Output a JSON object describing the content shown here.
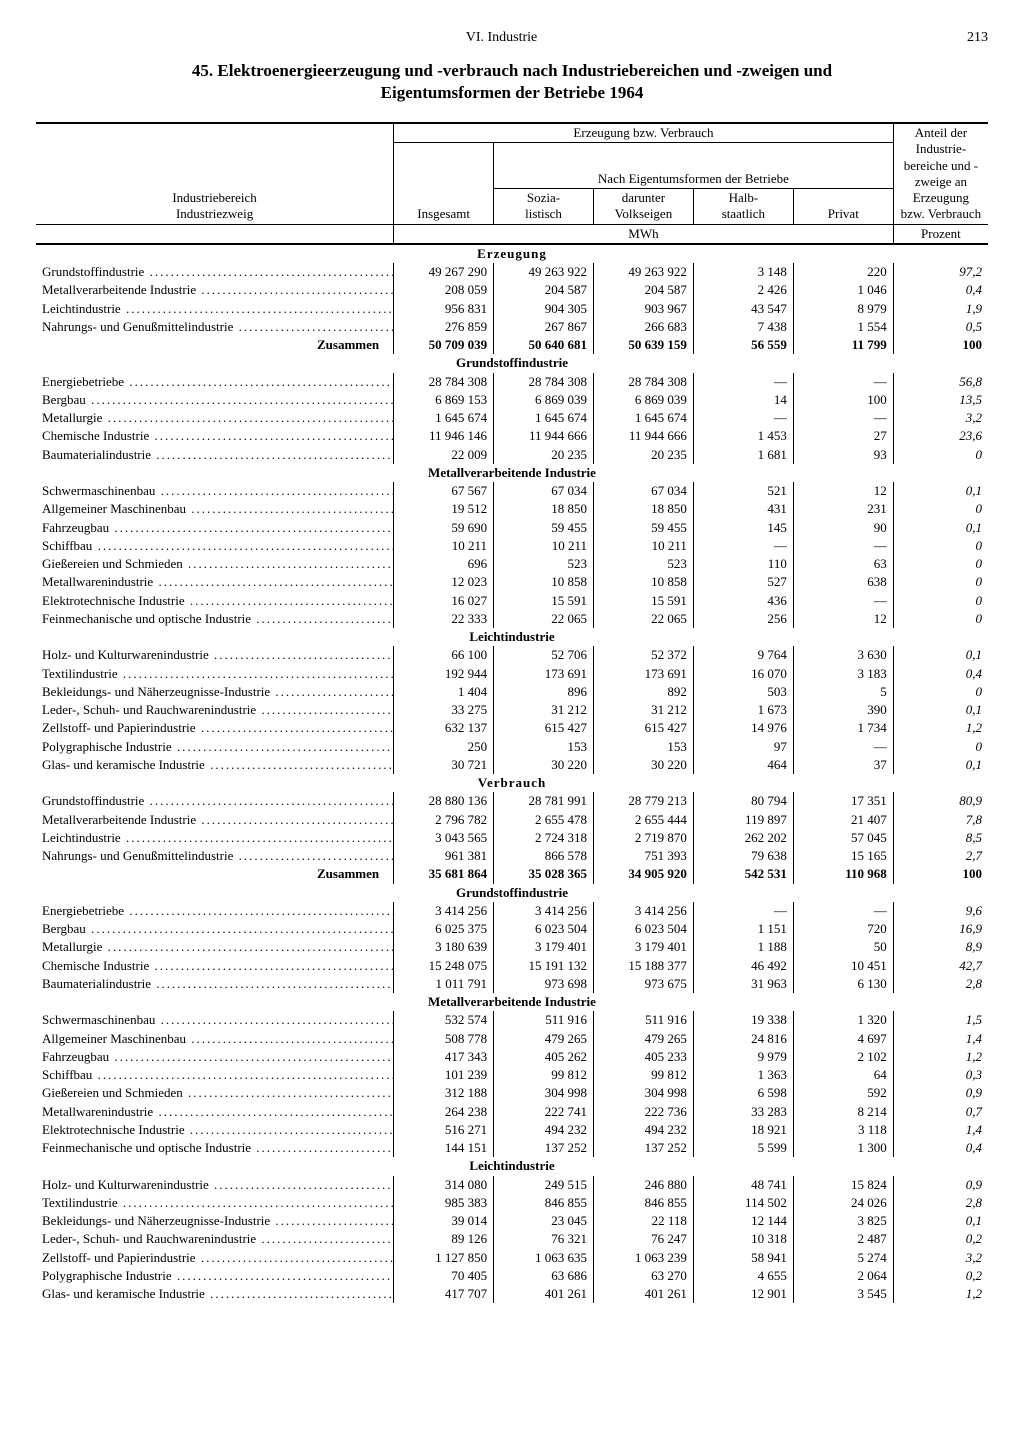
{
  "page": {
    "chapter": "VI. Industrie",
    "number": "213",
    "title_line1": "45. Elektroenergieerzeugung und -verbrauch nach Industriebereichen und -zweigen und",
    "title_line2": "Eigentumsformen der Betriebe 1964"
  },
  "header": {
    "col_bereich1": "Industriebereich",
    "col_bereich2": "Industriezweig",
    "group_top": "Erzeugung bzw. Verbrauch",
    "group_sub": "Nach Eigentumsformen der Betriebe",
    "insgesamt": "Insgesamt",
    "sozialistisch": "Sozia-\nlistisch",
    "volkseigen": "darunter\nVolkseigen",
    "halbstaatlich": "Halb-\nstaatlich",
    "privat": "Privat",
    "anteil": "Anteil der Industrie-\nbereiche und -zweige an Erzeugung bzw. Verbrauch",
    "unit_mwh": "MWh",
    "unit_prozent": "Prozent"
  },
  "sections": [
    {
      "heading": "Erzeugung",
      "blocks": [
        {
          "rows": [
            {
              "label": "Grundstoffindustrie",
              "v": [
                "49 267 290",
                "49 263 922",
                "49 263 922",
                "3 148",
                "220",
                "97,2"
              ]
            },
            {
              "label": "Metallverarbeitende Industrie",
              "v": [
                "208 059",
                "204 587",
                "204 587",
                "2 426",
                "1 046",
                "0,4"
              ]
            },
            {
              "label": "Leichtindustrie",
              "v": [
                "956 831",
                "904 305",
                "903 967",
                "43 547",
                "8 979",
                "1,9"
              ]
            },
            {
              "label": "Nahrungs- und Genußmittelindustrie",
              "v": [
                "276 859",
                "267 867",
                "266 683",
                "7 438",
                "1 554",
                "0,5"
              ]
            }
          ],
          "sum": {
            "label": "Zusammen",
            "v": [
              "50 709 039",
              "50 640 681",
              "50 639 159",
              "56 559",
              "11 799",
              "100"
            ]
          }
        },
        {
          "subheading": "Grundstoffindustrie",
          "rows": [
            {
              "label": "Energiebetriebe",
              "v": [
                "28 784 308",
                "28 784 308",
                "28 784 308",
                "—",
                "—",
                "56,8"
              ]
            },
            {
              "label": "Bergbau",
              "v": [
                "6 869 153",
                "6 869 039",
                "6 869 039",
                "14",
                "100",
                "13,5"
              ]
            },
            {
              "label": "Metallurgie",
              "v": [
                "1 645 674",
                "1 645 674",
                "1 645 674",
                "—",
                "—",
                "3,2"
              ]
            },
            {
              "label": "Chemische Industrie",
              "v": [
                "11 946 146",
                "11 944 666",
                "11 944 666",
                "1 453",
                "27",
                "23,6"
              ]
            },
            {
              "label": "Baumaterialindustrie",
              "v": [
                "22 009",
                "20 235",
                "20 235",
                "1 681",
                "93",
                "0"
              ]
            }
          ]
        },
        {
          "subheading": "Metallverarbeitende Industrie",
          "rows": [
            {
              "label": "Schwermaschinenbau",
              "v": [
                "67 567",
                "67 034",
                "67 034",
                "521",
                "12",
                "0,1"
              ]
            },
            {
              "label": "Allgemeiner Maschinenbau",
              "v": [
                "19 512",
                "18 850",
                "18 850",
                "431",
                "231",
                "0"
              ]
            },
            {
              "label": "Fahrzeugbau",
              "v": [
                "59 690",
                "59 455",
                "59 455",
                "145",
                "90",
                "0,1"
              ]
            },
            {
              "label": "Schiffbau",
              "v": [
                "10 211",
                "10 211",
                "10 211",
                "—",
                "—",
                "0"
              ]
            },
            {
              "label": "Gießereien und Schmieden",
              "v": [
                "696",
                "523",
                "523",
                "110",
                "63",
                "0"
              ]
            },
            {
              "label": "Metallwarenindustrie",
              "v": [
                "12 023",
                "10 858",
                "10 858",
                "527",
                "638",
                "0"
              ]
            },
            {
              "label": "Elektrotechnische Industrie",
              "v": [
                "16 027",
                "15 591",
                "15 591",
                "436",
                "—",
                "0"
              ]
            },
            {
              "label": "Feinmechanische und optische Industrie",
              "v": [
                "22 333",
                "22 065",
                "22 065",
                "256",
                "12",
                "0"
              ]
            }
          ]
        },
        {
          "subheading": "Leichtindustrie",
          "rows": [
            {
              "label": "Holz- und Kulturwarenindustrie",
              "v": [
                "66 100",
                "52 706",
                "52 372",
                "9 764",
                "3 630",
                "0,1"
              ]
            },
            {
              "label": "Textilindustrie",
              "v": [
                "192 944",
                "173 691",
                "173 691",
                "16 070",
                "3 183",
                "0,4"
              ]
            },
            {
              "label": "Bekleidungs- und Näherzeugnisse-Industrie",
              "v": [
                "1 404",
                "896",
                "892",
                "503",
                "5",
                "0"
              ]
            },
            {
              "label": "Leder-, Schuh- und Rauchwarenindustrie",
              "v": [
                "33 275",
                "31 212",
                "31 212",
                "1 673",
                "390",
                "0,1"
              ]
            },
            {
              "label": "Zellstoff- und Papierindustrie",
              "v": [
                "632 137",
                "615 427",
                "615 427",
                "14 976",
                "1 734",
                "1,2"
              ]
            },
            {
              "label": "Polygraphische Industrie",
              "v": [
                "250",
                "153",
                "153",
                "97",
                "—",
                "0"
              ]
            },
            {
              "label": "Glas- und keramische Industrie",
              "v": [
                "30 721",
                "30 220",
                "30 220",
                "464",
                "37",
                "0,1"
              ]
            }
          ]
        }
      ]
    },
    {
      "heading": "Verbrauch",
      "blocks": [
        {
          "rows": [
            {
              "label": "Grundstoffindustrie",
              "v": [
                "28 880 136",
                "28 781 991",
                "28 779 213",
                "80 794",
                "17 351",
                "80,9"
              ]
            },
            {
              "label": "Metallverarbeitende Industrie",
              "v": [
                "2 796 782",
                "2 655 478",
                "2 655 444",
                "119 897",
                "21 407",
                "7,8"
              ]
            },
            {
              "label": "Leichtindustrie",
              "v": [
                "3 043 565",
                "2 724 318",
                "2 719 870",
                "262 202",
                "57 045",
                "8,5"
              ]
            },
            {
              "label": "Nahrungs- und Genußmittelindustrie",
              "v": [
                "961 381",
                "866 578",
                "751 393",
                "79 638",
                "15 165",
                "2,7"
              ]
            }
          ],
          "sum": {
            "label": "Zusammen",
            "v": [
              "35 681 864",
              "35 028 365",
              "34 905 920",
              "542 531",
              "110 968",
              "100"
            ]
          }
        },
        {
          "subheading": "Grundstoffindustrie",
          "rows": [
            {
              "label": "Energiebetriebe",
              "v": [
                "3 414 256",
                "3 414 256",
                "3 414 256",
                "—",
                "—",
                "9,6"
              ]
            },
            {
              "label": "Bergbau",
              "v": [
                "6 025 375",
                "6 023 504",
                "6 023 504",
                "1 151",
                "720",
                "16,9"
              ]
            },
            {
              "label": "Metallurgie",
              "v": [
                "3 180 639",
                "3 179 401",
                "3 179 401",
                "1 188",
                "50",
                "8,9"
              ]
            },
            {
              "label": "Chemische Industrie",
              "v": [
                "15 248 075",
                "15 191 132",
                "15 188 377",
                "46 492",
                "10 451",
                "42,7"
              ]
            },
            {
              "label": "Baumaterialindustrie",
              "v": [
                "1 011 791",
                "973 698",
                "973 675",
                "31 963",
                "6 130",
                "2,8"
              ]
            }
          ]
        },
        {
          "subheading": "Metallverarbeitende Industrie",
          "rows": [
            {
              "label": "Schwermaschinenbau",
              "v": [
                "532 574",
                "511 916",
                "511 916",
                "19 338",
                "1 320",
                "1,5"
              ]
            },
            {
              "label": "Allgemeiner Maschinenbau",
              "v": [
                "508 778",
                "479 265",
                "479 265",
                "24 816",
                "4 697",
                "1,4"
              ]
            },
            {
              "label": "Fahrzeugbau",
              "v": [
                "417 343",
                "405 262",
                "405 233",
                "9 979",
                "2 102",
                "1,2"
              ]
            },
            {
              "label": "Schiffbau",
              "v": [
                "101 239",
                "99 812",
                "99 812",
                "1 363",
                "64",
                "0,3"
              ]
            },
            {
              "label": "Gießereien und Schmieden",
              "v": [
                "312 188",
                "304 998",
                "304 998",
                "6 598",
                "592",
                "0,9"
              ]
            },
            {
              "label": "Metallwarenindustrie",
              "v": [
                "264 238",
                "222 741",
                "222 736",
                "33 283",
                "8 214",
                "0,7"
              ]
            },
            {
              "label": "Elektrotechnische Industrie",
              "v": [
                "516 271",
                "494 232",
                "494 232",
                "18 921",
                "3 118",
                "1,4"
              ]
            },
            {
              "label": "Feinmechanische und optische Industrie",
              "v": [
                "144 151",
                "137 252",
                "137 252",
                "5 599",
                "1 300",
                "0,4"
              ]
            }
          ]
        },
        {
          "subheading": "Leichtindustrie",
          "rows": [
            {
              "label": "Holz- und Kulturwarenindustrie",
              "v": [
                "314 080",
                "249 515",
                "246 880",
                "48 741",
                "15 824",
                "0,9"
              ]
            },
            {
              "label": "Textilindustrie",
              "v": [
                "985 383",
                "846 855",
                "846 855",
                "114 502",
                "24 026",
                "2,8"
              ]
            },
            {
              "label": "Bekleidungs- und Näherzeugnisse-Industrie",
              "v": [
                "39 014",
                "23 045",
                "22 118",
                "12 144",
                "3 825",
                "0,1"
              ]
            },
            {
              "label": "Leder-, Schuh- und Rauchwarenindustrie",
              "v": [
                "89 126",
                "76 321",
                "76 247",
                "10 318",
                "2 487",
                "0,2"
              ]
            },
            {
              "label": "Zellstoff- und Papierindustrie",
              "v": [
                "1 127 850",
                "1 063 635",
                "1 063 239",
                "58 941",
                "5 274",
                "3,2"
              ]
            },
            {
              "label": "Polygraphische Industrie",
              "v": [
                "70 405",
                "63 686",
                "63 270",
                "4 655",
                "2 064",
                "0,2"
              ]
            },
            {
              "label": "Glas- und keramische Industrie",
              "v": [
                "417 707",
                "401 261",
                "401 261",
                "12 901",
                "3 545",
                "1,2"
              ]
            }
          ]
        }
      ]
    }
  ]
}
